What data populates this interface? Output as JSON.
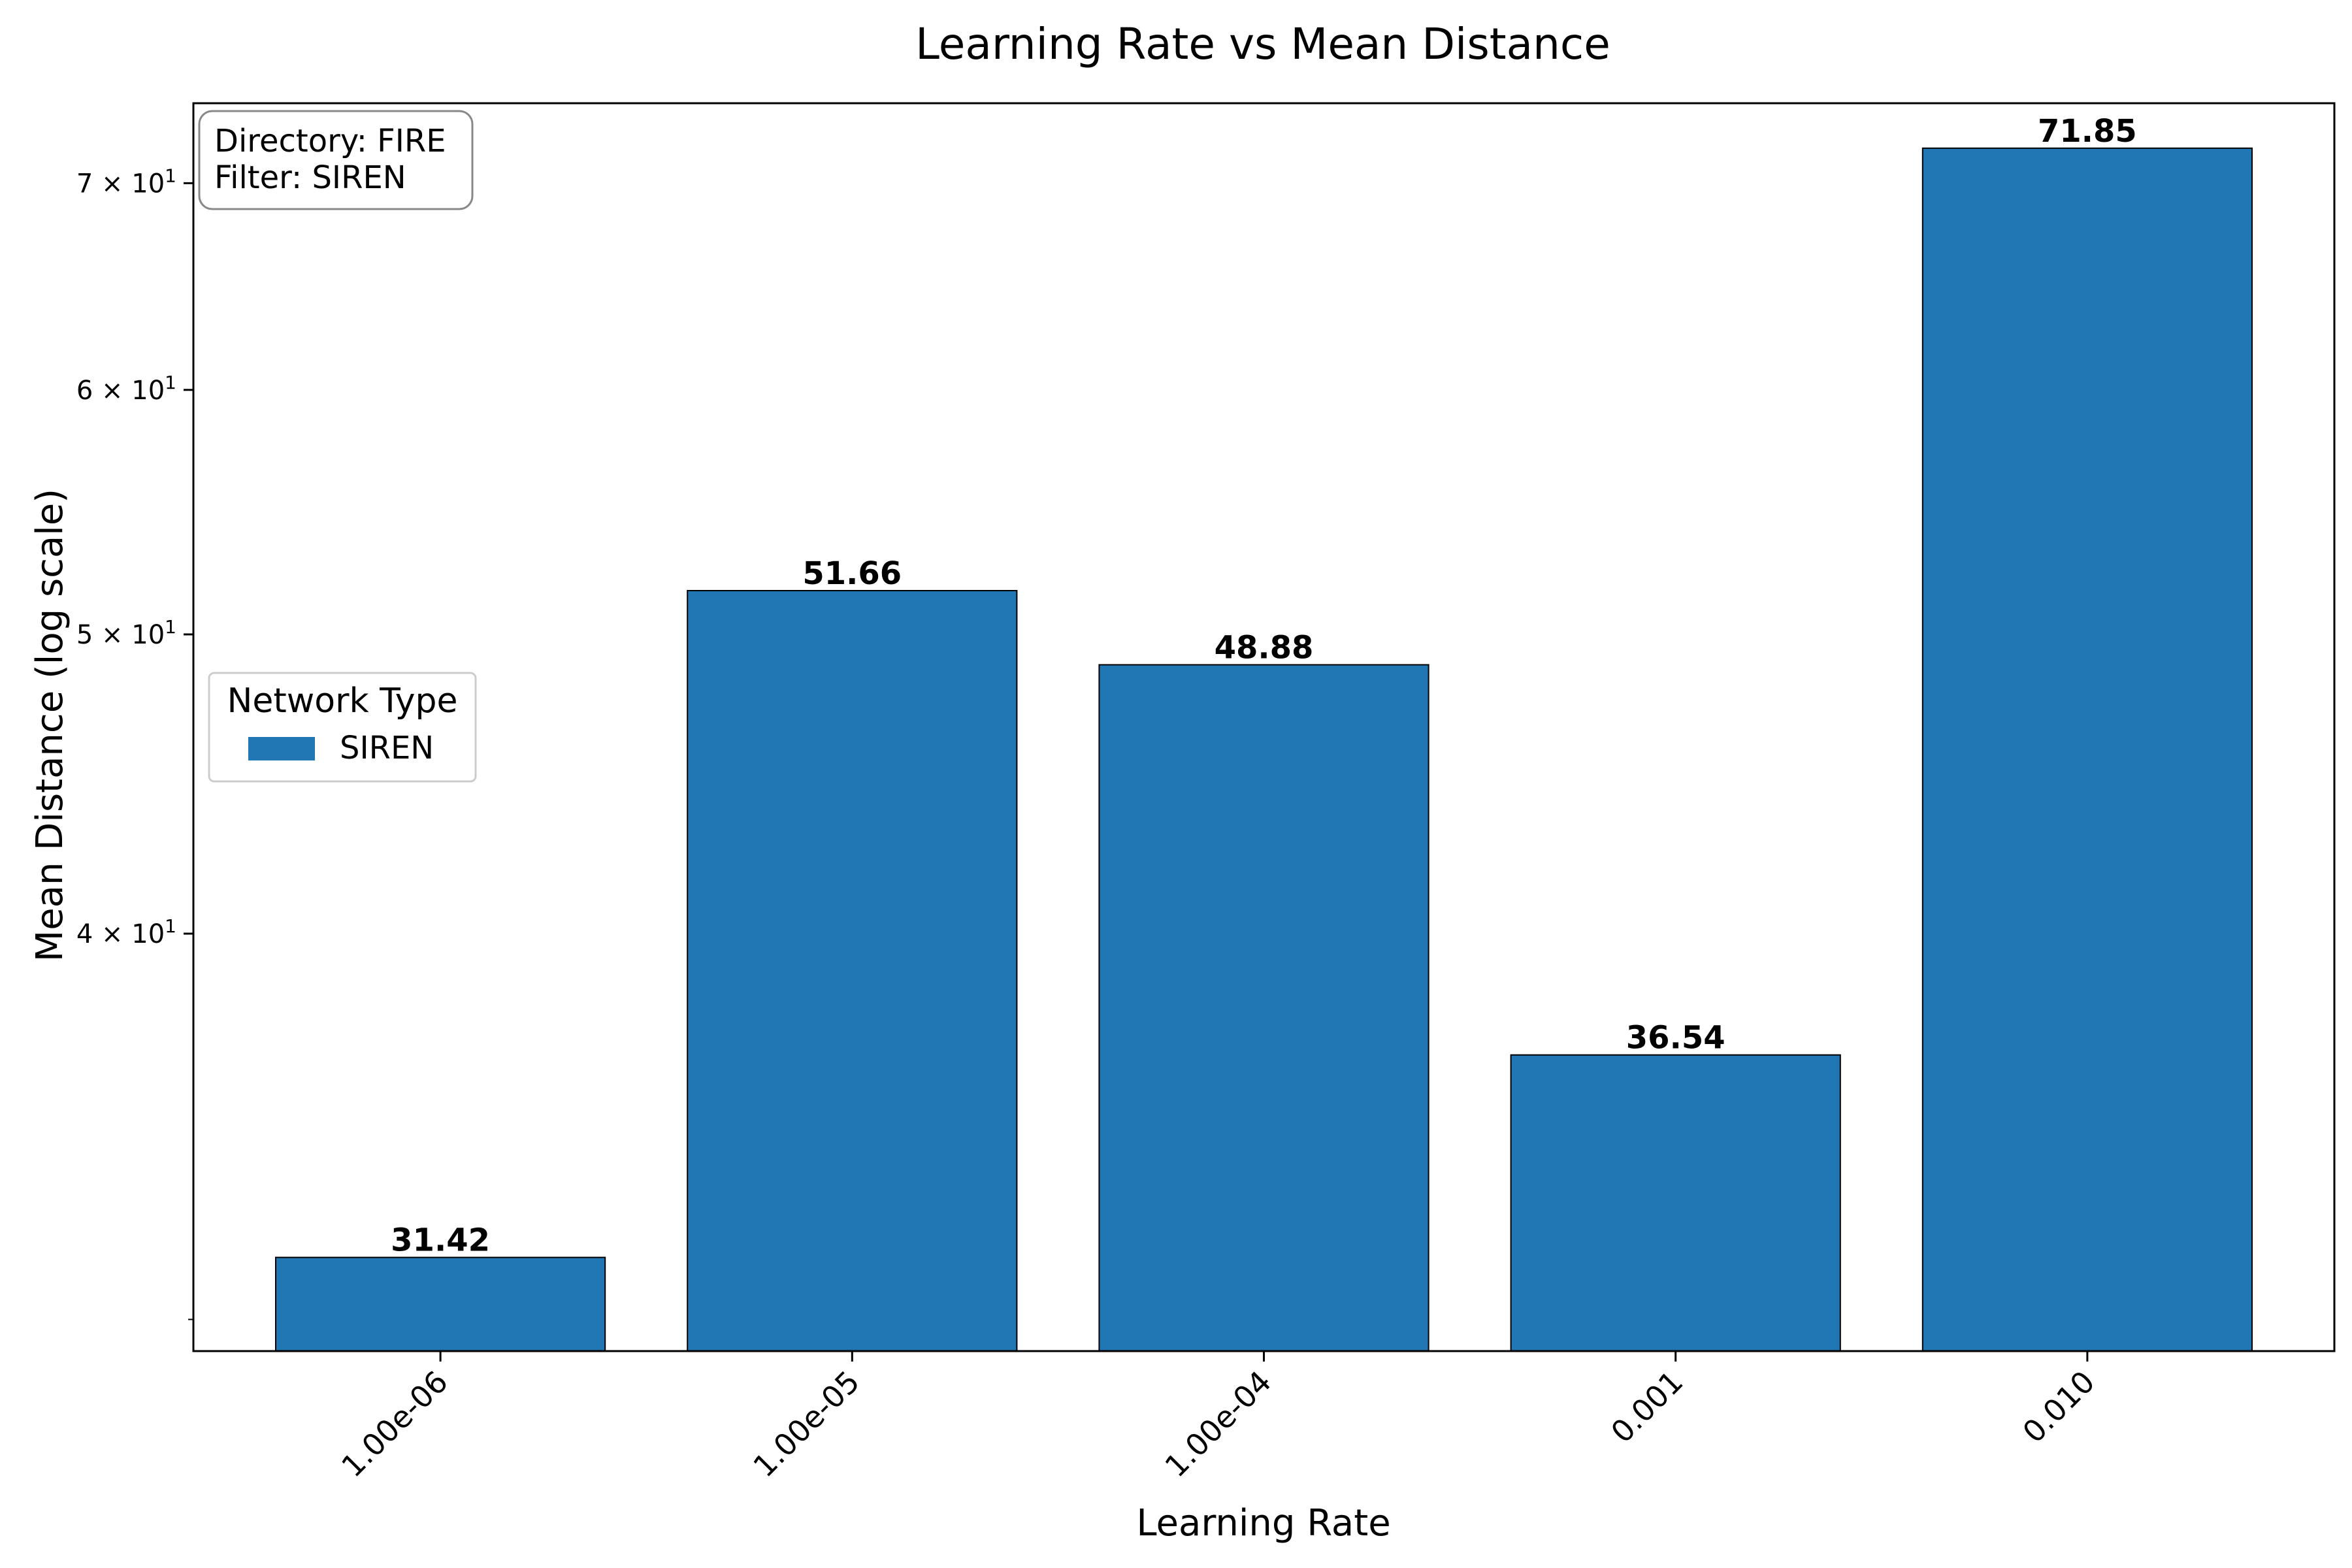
{
  "chart_data": {
    "type": "bar",
    "title": "Learning Rate vs Mean Distance",
    "xlabel": "Learning Rate",
    "ylabel": "Mean Distance (log scale)",
    "yscale": "log",
    "ylim": [
      29.3,
      74.3
    ],
    "yticks": [
      {
        "value": 40,
        "label": "4 × 10^1"
      },
      {
        "value": 50,
        "label": "5 × 10^1"
      },
      {
        "value": 60,
        "label": "6 × 10^1"
      },
      {
        "value": 70,
        "label": "7 × 10^1"
      }
    ],
    "categories": [
      "1.00e-06",
      "1.00e-05",
      "1.00e-04",
      "0.001",
      "0.010"
    ],
    "series": [
      {
        "name": "SIREN",
        "color": "#2077b4",
        "values": [
          31.42,
          51.66,
          48.88,
          36.54,
          71.85
        ]
      }
    ],
    "data_labels": [
      "31.42",
      "51.66",
      "48.88",
      "36.54",
      "71.85"
    ],
    "legend": {
      "title": "Network Type",
      "placement": "center-left"
    },
    "info_box": {
      "lines": [
        "Directory: FIRE",
        "Filter: SIREN"
      ],
      "placement": "top-left"
    },
    "grid": false
  }
}
